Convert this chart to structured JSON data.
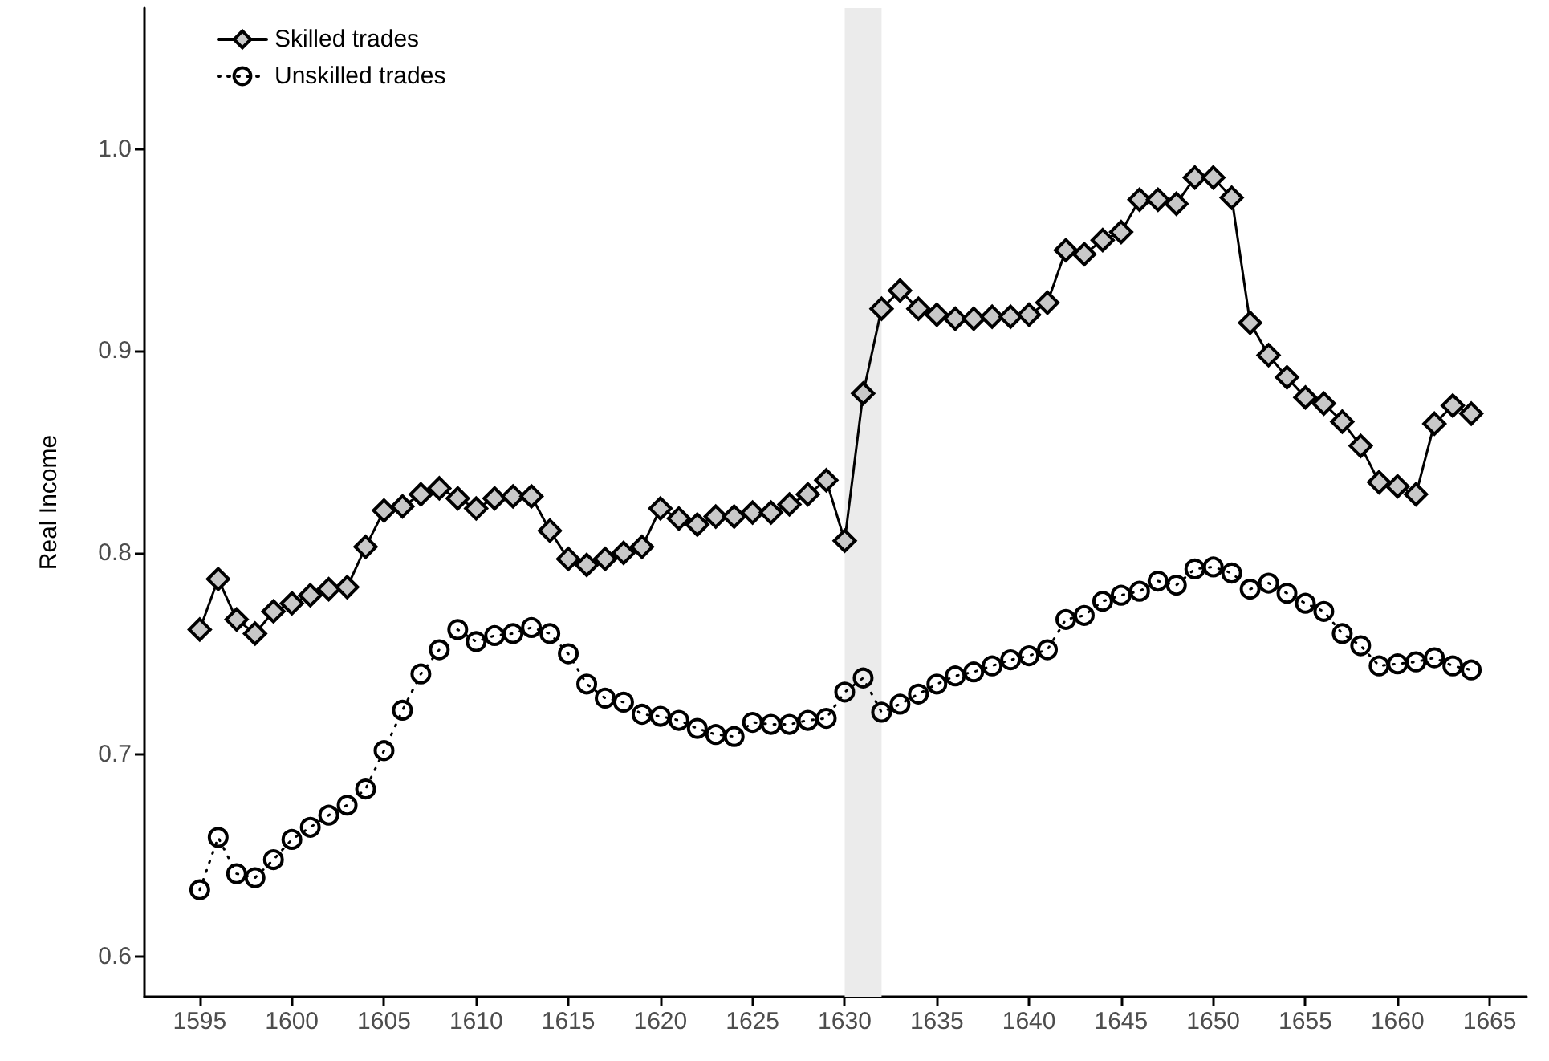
{
  "chart_data": {
    "type": "line",
    "ylabel": "Real Income",
    "x": [
      1595,
      1596,
      1597,
      1598,
      1599,
      1600,
      1601,
      1602,
      1603,
      1604,
      1605,
      1606,
      1607,
      1608,
      1609,
      1610,
      1611,
      1612,
      1613,
      1614,
      1615,
      1616,
      1617,
      1618,
      1619,
      1620,
      1621,
      1622,
      1623,
      1624,
      1625,
      1626,
      1627,
      1628,
      1629,
      1630,
      1631,
      1632,
      1633,
      1634,
      1635,
      1636,
      1637,
      1638,
      1639,
      1640,
      1641,
      1642,
      1643,
      1644,
      1645,
      1646,
      1647,
      1648,
      1649,
      1650,
      1651,
      1652,
      1653,
      1654,
      1655,
      1656,
      1657,
      1658,
      1659,
      1660,
      1661,
      1662,
      1663,
      1664
    ],
    "series": [
      {
        "name": "Skilled trades",
        "color": "#000000",
        "marker": "diamond",
        "line_style": "solid",
        "values": [
          0.762,
          0.787,
          0.767,
          0.76,
          0.771,
          0.775,
          0.779,
          0.782,
          0.783,
          0.803,
          0.821,
          0.823,
          0.829,
          0.832,
          0.827,
          0.822,
          0.827,
          0.828,
          0.828,
          0.811,
          0.797,
          0.794,
          0.797,
          0.8,
          0.803,
          0.822,
          0.817,
          0.814,
          0.818,
          0.818,
          0.82,
          0.82,
          0.824,
          0.829,
          0.836,
          0.806,
          0.879,
          0.921,
          0.93,
          0.921,
          0.918,
          0.916,
          0.916,
          0.917,
          0.917,
          0.918,
          0.924,
          0.95,
          0.948,
          0.955,
          0.959,
          0.975,
          0.975,
          0.973,
          0.986,
          0.986,
          0.976,
          0.914,
          0.898,
          0.887,
          0.877,
          0.874,
          0.865,
          0.853,
          0.835,
          0.833,
          0.829,
          0.864,
          0.873,
          0.869
        ]
      },
      {
        "name": "Unskilled trades",
        "color": "#000000",
        "marker": "circle",
        "line_style": "dotted",
        "values": [
          0.633,
          0.659,
          0.641,
          0.639,
          0.648,
          0.658,
          0.664,
          0.67,
          0.675,
          0.683,
          0.702,
          0.722,
          0.74,
          0.752,
          0.762,
          0.756,
          0.759,
          0.76,
          0.763,
          0.76,
          0.75,
          0.735,
          0.728,
          0.726,
          0.72,
          0.719,
          0.717,
          0.713,
          0.71,
          0.709,
          0.716,
          0.715,
          0.715,
          0.717,
          0.718,
          0.731,
          0.738,
          0.721,
          0.725,
          0.73,
          0.735,
          0.739,
          0.741,
          0.744,
          0.747,
          0.749,
          0.752,
          0.767,
          0.769,
          0.776,
          0.779,
          0.781,
          0.786,
          0.784,
          0.792,
          0.793,
          0.79,
          0.782,
          0.785,
          0.78,
          0.775,
          0.771,
          0.76,
          0.754,
          0.744,
          0.745,
          0.746,
          0.748,
          0.744,
          0.742
        ]
      }
    ],
    "xlim": [
      1592,
      1667
    ],
    "xticks": [
      1595,
      1600,
      1605,
      1610,
      1615,
      1620,
      1625,
      1630,
      1635,
      1640,
      1645,
      1650,
      1655,
      1660,
      1665
    ],
    "ylim": [
      0.58,
      1.07
    ],
    "yticks": [
      {
        "value": 0.6,
        "label": "0.6"
      },
      {
        "value": 0.7,
        "label": "0.7"
      },
      {
        "value": 0.8,
        "label": "0.8"
      },
      {
        "value": 0.9,
        "label": "0.9"
      },
      {
        "value": 1,
        "label": "1.0"
      }
    ],
    "bands": [
      {
        "axis": "x",
        "from": 1630,
        "to": 1632,
        "color": "#ebebeb"
      }
    ],
    "grid": false,
    "legend": "top left"
  }
}
